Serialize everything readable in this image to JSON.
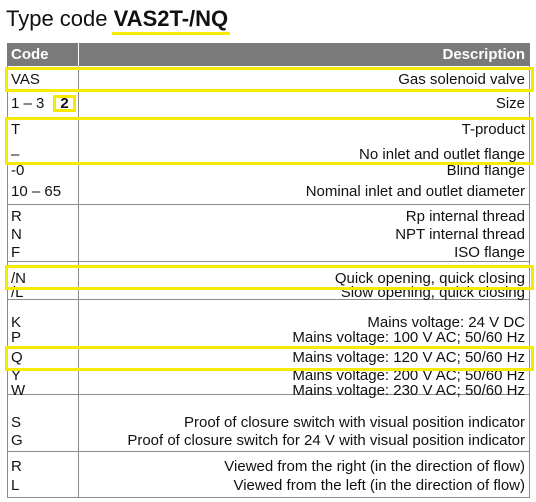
{
  "title": {
    "prefix": "Type code",
    "code": "VAS2T-/NQ"
  },
  "header": {
    "code": "Code",
    "description": "Description"
  },
  "rows": [
    {
      "code": "VAS",
      "description": "Gas solenoid valve"
    },
    {
      "code": "1 – 3",
      "badge": "2",
      "description": "Size"
    },
    {
      "code": "T",
      "description": "T-product"
    },
    {
      "code": "–",
      "description": "No inlet and outlet flange"
    },
    {
      "code": "-0",
      "description": "Blind flange"
    },
    {
      "code": "10 – 65",
      "description": "Nominal inlet and outlet diameter"
    },
    {
      "code": "R",
      "description": "Rp internal thread"
    },
    {
      "code": "N",
      "description": "NPT internal thread"
    },
    {
      "code": "F",
      "description": "ISO flange"
    },
    {
      "code": "/N",
      "description": "Quick opening, quick closing"
    },
    {
      "code": "/L",
      "description": "Slow opening, quick closing"
    },
    {
      "code": "K",
      "description": "Mains voltage: 24 V DC"
    },
    {
      "code": "P",
      "description": "Mains voltage: 100 V AC; 50/60 Hz"
    },
    {
      "code": "Q",
      "description": "Mains voltage: 120 V AC; 50/60 Hz"
    },
    {
      "code": "Y",
      "description": "Mains voltage: 200 V AC; 50/60 Hz"
    },
    {
      "code": "W",
      "description": "Mains voltage: 230 V AC; 50/60 Hz"
    },
    {
      "code": "S",
      "description": "Proof of closure switch with visual position indicator"
    },
    {
      "code": "G",
      "description": "Proof of closure switch for 24 V with visual position indicator"
    },
    {
      "code": "R",
      "description": "Viewed from the right (in the direction of flow)"
    },
    {
      "code": "L",
      "description": "Viewed from the left (in the direction of flow)"
    }
  ],
  "highlight_color": "#f5ea00",
  "header_color": "#7a7a7a"
}
